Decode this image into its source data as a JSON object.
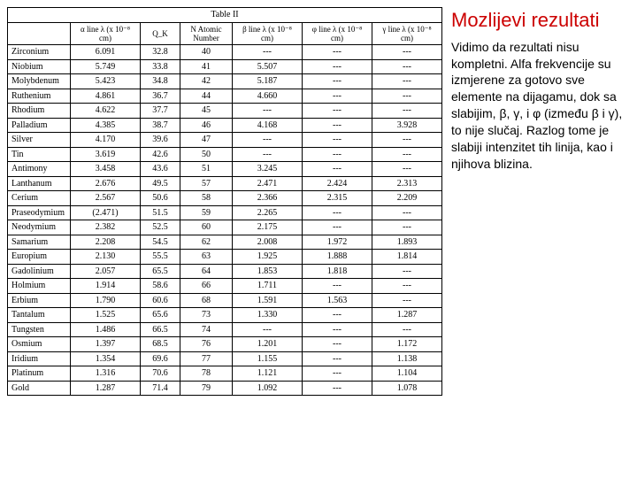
{
  "table": {
    "caption": "Table II",
    "headers": {
      "element": "",
      "alpha": "α line\nλ (x 10⁻⁸ cm)",
      "qk": "Q_K",
      "n": "N Atomic Number",
      "beta": "β line\nλ (x 10⁻⁸ cm)",
      "phi": "φ line\nλ (x 10⁻⁸ cm)",
      "gamma": "γ line\nλ (x 10⁻⁸ cm)"
    },
    "rows": [
      {
        "el": "Zirconium",
        "a": "6.091",
        "q": "32.8",
        "n": "40",
        "b": "---",
        "p": "---",
        "g": "---"
      },
      {
        "el": "Niobium",
        "a": "5.749",
        "q": "33.8",
        "n": "41",
        "b": "5.507",
        "p": "---",
        "g": "---"
      },
      {
        "el": "Molybdenum",
        "a": "5.423",
        "q": "34.8",
        "n": "42",
        "b": "5.187",
        "p": "---",
        "g": "---"
      },
      {
        "el": "Ruthenium",
        "a": "4.861",
        "q": "36.7",
        "n": "44",
        "b": "4.660",
        "p": "---",
        "g": "---"
      },
      {
        "el": "Rhodium",
        "a": "4.622",
        "q": "37.7",
        "n": "45",
        "b": "---",
        "p": "---",
        "g": "---"
      },
      {
        "el": "Palladium",
        "a": "4.385",
        "q": "38.7",
        "n": "46",
        "b": "4.168",
        "p": "---",
        "g": "3.928"
      },
      {
        "el": "Silver",
        "a": "4.170",
        "q": "39.6",
        "n": "47",
        "b": "---",
        "p": "---",
        "g": "---"
      },
      {
        "el": "Tin",
        "a": "3.619",
        "q": "42.6",
        "n": "50",
        "b": "---",
        "p": "---",
        "g": "---"
      },
      {
        "el": "Antimony",
        "a": "3.458",
        "q": "43.6",
        "n": "51",
        "b": "3.245",
        "p": "---",
        "g": "---"
      },
      {
        "el": "Lanthanum",
        "a": "2.676",
        "q": "49.5",
        "n": "57",
        "b": "2.471",
        "p": "2.424",
        "g": "2.313"
      },
      {
        "el": "Cerium",
        "a": "2.567",
        "q": "50.6",
        "n": "58",
        "b": "2.366",
        "p": "2.315",
        "g": "2.209"
      },
      {
        "el": "Praseodymium",
        "a": "(2.471)",
        "q": "51.5",
        "n": "59",
        "b": "2.265",
        "p": "---",
        "g": "---"
      },
      {
        "el": "Neodymium",
        "a": "2.382",
        "q": "52.5",
        "n": "60",
        "b": "2.175",
        "p": "---",
        "g": "---"
      },
      {
        "el": "Samarium",
        "a": "2.208",
        "q": "54.5",
        "n": "62",
        "b": "2.008",
        "p": "1.972",
        "g": "1.893"
      },
      {
        "el": "Europium",
        "a": "2.130",
        "q": "55.5",
        "n": "63",
        "b": "1.925",
        "p": "1.888",
        "g": "1.814"
      },
      {
        "el": "Gadolinium",
        "a": "2.057",
        "q": "65.5",
        "n": "64",
        "b": "1.853",
        "p": "1.818",
        "g": "---"
      },
      {
        "el": "Holmium",
        "a": "1.914",
        "q": "58.6",
        "n": "66",
        "b": "1.711",
        "p": "---",
        "g": "---"
      },
      {
        "el": "Erbium",
        "a": "1.790",
        "q": "60.6",
        "n": "68",
        "b": "1.591",
        "p": "1.563",
        "g": "---"
      },
      {
        "el": "Tantalum",
        "a": "1.525",
        "q": "65.6",
        "n": "73",
        "b": "1.330",
        "p": "---",
        "g": "1.287"
      },
      {
        "el": "Tungsten",
        "a": "1.486",
        "q": "66.5",
        "n": "74",
        "b": "---",
        "p": "---",
        "g": "---"
      },
      {
        "el": "Osmium",
        "a": "1.397",
        "q": "68.5",
        "n": "76",
        "b": "1.201",
        "p": "---",
        "g": "1.172"
      },
      {
        "el": "Iridium",
        "a": "1.354",
        "q": "69.6",
        "n": "77",
        "b": "1.155",
        "p": "---",
        "g": "1.138"
      },
      {
        "el": "Platinum",
        "a": "1.316",
        "q": "70.6",
        "n": "78",
        "b": "1.121",
        "p": "---",
        "g": "1.104"
      },
      {
        "el": "Gold",
        "a": "1.287",
        "q": "71.4",
        "n": "79",
        "b": "1.092",
        "p": "---",
        "g": "1.078"
      }
    ]
  },
  "side": {
    "title": "Mozlijevi rezultati",
    "body": "Vidimo da rezultati nisu kompletni. Alfa frekvencije su izmjerene za gotovo sve elemente na dijagamu, dok sa slabijim, β, γ, i φ (između β i γ), to nije slučaj. Razlog tome je slabiji intenzitet tih linija, kao i njihova blizina."
  }
}
